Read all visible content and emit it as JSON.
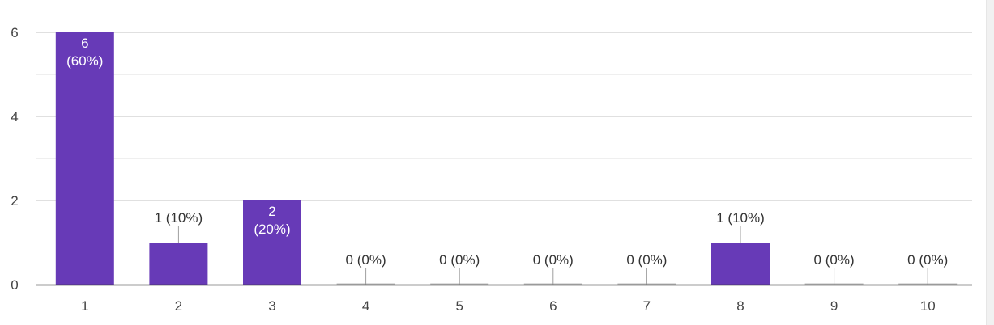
{
  "chart_data": {
    "type": "bar",
    "categories": [
      "1",
      "2",
      "3",
      "4",
      "5",
      "6",
      "7",
      "8",
      "9",
      "10"
    ],
    "values": [
      6,
      1,
      2,
      0,
      0,
      0,
      0,
      1,
      0,
      0
    ],
    "data_labels": [
      "6 (60%)",
      "1 (10%)",
      "2 (20%)",
      "0 (0%)",
      "0 (0%)",
      "0 (0%)",
      "0 (0%)",
      "1 (10%)",
      "0 (0%)",
      "0 (0%)"
    ],
    "ylim": [
      0,
      6
    ],
    "yticks": [
      0,
      2,
      4,
      6
    ],
    "grid": true,
    "bar_color": "#673ab7",
    "title": "",
    "xlabel": "",
    "ylabel": ""
  }
}
